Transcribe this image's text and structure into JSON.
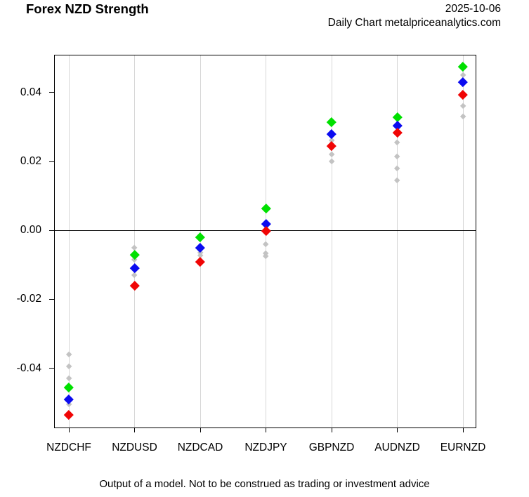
{
  "header": {
    "title": "Forex NZD Strength",
    "date": "2025-10-06",
    "subtitle": "Daily Chart metalpriceanalytics.com"
  },
  "footer": {
    "disclaimer": "Output of a model. Not to be construed as trading or investment advice"
  },
  "chart_data": {
    "type": "scatter",
    "marker": "diamond",
    "title": "Forex NZD Strength",
    "categories": [
      "NZDCHF",
      "NZDUSD",
      "NZDCAD",
      "NZDJPY",
      "GBPNZD",
      "AUDNZD",
      "EURNZD"
    ],
    "y_axis": {
      "tick_labels": [
        "0.04",
        "0.02",
        "0.00",
        "-0.02",
        "-0.04"
      ],
      "tick_values": [
        0.04,
        0.02,
        0,
        -0.02,
        -0.04
      ],
      "ylim": [
        -0.0572,
        0.0511
      ]
    },
    "grid": "vertical-only",
    "zero_line": 0,
    "legend": "none",
    "series": [
      {
        "name": "green",
        "color": "#00e000",
        "values": [
          -0.0455,
          -0.007,
          -0.002,
          0.0065,
          0.0315,
          0.033,
          0.0475
        ]
      },
      {
        "name": "blue",
        "color": "#0b0bf0",
        "values": [
          -0.049,
          -0.011,
          -0.005,
          0.002,
          0.028,
          0.0305,
          0.043
        ]
      },
      {
        "name": "red",
        "color": "#f00505",
        "values": [
          -0.0535,
          -0.016,
          -0.009,
          -0.0002,
          0.0245,
          0.0285,
          0.0395
        ]
      }
    ],
    "gray_points": {
      "color": "#c3c3c3",
      "values_by_category": [
        [
          -0.036,
          -0.0395,
          -0.043,
          -0.0505
        ],
        [
          -0.005,
          -0.0085,
          -0.013
        ],
        [
          -0.0065,
          -0.0073
        ],
        [
          -0.004,
          -0.0068,
          -0.0075
        ],
        [
          0.026,
          0.022,
          0.02
        ],
        [
          0.0255,
          0.0215,
          0.018,
          0.0145
        ],
        [
          0.045,
          0.036,
          0.033
        ]
      ]
    },
    "colors": {
      "gridline": "#d6d6d6",
      "axis": "#000000"
    }
  }
}
